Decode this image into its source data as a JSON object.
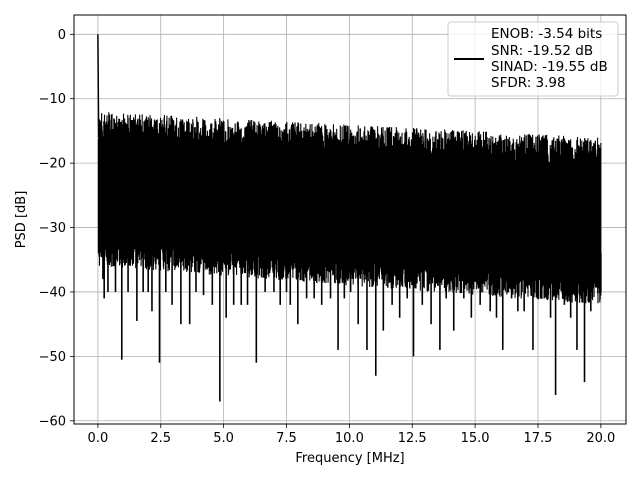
{
  "chart_data": {
    "type": "line",
    "title": "",
    "xlabel": "Frequency [MHz]",
    "ylabel": "PSD [dB]",
    "xlim": [
      -0.95,
      21.0
    ],
    "ylim": [
      -60.5,
      3.0
    ],
    "xticks": [
      0.0,
      2.5,
      5.0,
      7.5,
      10.0,
      12.5,
      15.0,
      17.5,
      20.0
    ],
    "xtick_labels": [
      "0.0",
      "2.5",
      "5.0",
      "7.5",
      "10.0",
      "12.5",
      "15.0",
      "17.5",
      "20.0"
    ],
    "yticks": [
      0,
      -10,
      -20,
      -30,
      -40,
      -50,
      -60
    ],
    "ytick_labels": [
      "0",
      "−10",
      "−20",
      "−30",
      "−40",
      "−50",
      "−60"
    ],
    "grid": true,
    "legend_position": "top-right",
    "legend_lines": [
      "ENOB: -3.54 bits",
      "SNR: -19.52 dB",
      "SINAD: -19.55 dB",
      "SFDR: 3.98"
    ],
    "series": [
      {
        "color": "#000000",
        "peak": [
          0.0,
          0.0
        ],
        "band": {
          "x_start": 0.02,
          "x_end": 20.0,
          "upper_envelope": [
            -12,
            -16
          ],
          "typical_lower": [
            -32,
            -38
          ]
        },
        "x": [
          0.0,
          0.02,
          0.05,
          0.1,
          0.15,
          0.2,
          0.25,
          0.4,
          0.7,
          0.95,
          1.2,
          1.55,
          1.8,
          2.0,
          2.15,
          2.45,
          2.7,
          2.95,
          3.3,
          3.65,
          3.9,
          4.2,
          4.55,
          4.85,
          5.1,
          5.4,
          5.7,
          5.95,
          6.3,
          6.65,
          7.0,
          7.25,
          7.5,
          7.65,
          7.95,
          8.3,
          8.6,
          8.9,
          9.25,
          9.55,
          9.8,
          10.05,
          10.35,
          10.7,
          11.05,
          11.35,
          11.7,
          12.0,
          12.3,
          12.55,
          12.9,
          13.25,
          13.6,
          13.85,
          14.15,
          14.55,
          14.85,
          15.2,
          15.6,
          15.85,
          16.1,
          16.45,
          16.7,
          16.95,
          17.3,
          17.75,
          18.0,
          18.2,
          18.55,
          18.8,
          19.05,
          19.35,
          19.6,
          19.8,
          20.0
        ],
        "lower": [
          0.0,
          -14,
          -16,
          -24,
          -33,
          -38,
          -41,
          -40,
          -40,
          -50.5,
          -40,
          -44.5,
          -40,
          -40,
          -43,
          -51,
          -40,
          -42,
          -45,
          -45,
          -40,
          -40.5,
          -42,
          -57,
          -44,
          -42,
          -42,
          -42,
          -51,
          -40,
          -40,
          -42,
          -40,
          -42,
          -45,
          -41,
          -41,
          -42,
          -41,
          -49,
          -41,
          -40,
          -45,
          -49,
          -53,
          -46,
          -42,
          -44,
          -41,
          -50,
          -42,
          -45,
          -49,
          -41,
          -46,
          -41,
          -44,
          -42,
          -43,
          -44,
          -49,
          -41,
          -43,
          -43,
          -49,
          -41,
          -44,
          -56,
          -42,
          -44,
          -49,
          -54,
          -43,
          -39,
          -40
        ]
      }
    ]
  }
}
